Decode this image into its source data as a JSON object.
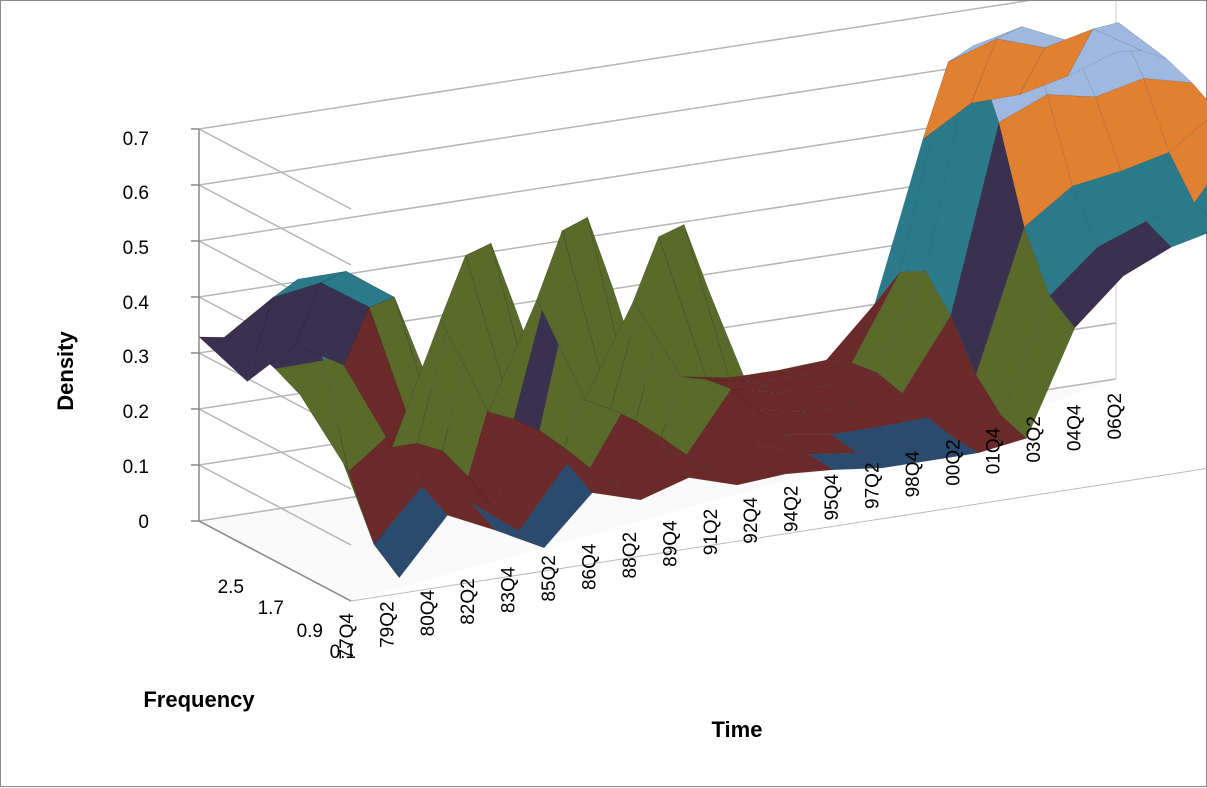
{
  "chart_data": {
    "type": "surface",
    "title": "",
    "zlabel": "Density",
    "xlabel": "Time",
    "ylabel": "Frequency",
    "zlim": [
      0,
      0.7
    ],
    "z_ticks": [
      "0",
      "0.1",
      "0.2",
      "0.3",
      "0.4",
      "0.5",
      "0.6",
      "0.7"
    ],
    "frequency_ticks": [
      "2.5",
      "1.7",
      "0.9",
      "0.1"
    ],
    "time_ticks": [
      "77Q4",
      "79Q2",
      "80Q4",
      "82Q2",
      "83Q4",
      "85Q2",
      "86Q4",
      "88Q2",
      "89Q4",
      "91Q2",
      "92Q4",
      "94Q2",
      "95Q4",
      "97Q2",
      "98Q4",
      "00Q2",
      "01Q4",
      "03Q2",
      "04Q4",
      "06Q2"
    ],
    "band_colors": [
      "#2a4a6e",
      "#6b2a2a",
      "#5a6a2a",
      "#3a3050",
      "#2a7a8a",
      "#e08030",
      "#9fb8e0",
      "#b89ad0",
      "#a8c860",
      "#e06060"
    ],
    "grid": true,
    "peak_density_by_time": [
      0.36,
      0.47,
      0.47,
      0.41,
      0.12,
      0.48,
      0.13,
      0.5,
      0.12,
      0.46,
      0.15,
      0.13,
      0.13,
      0.14,
      0.31,
      0.7,
      0.72,
      0.68,
      0.7,
      0.62
    ],
    "low_density_by_time": [
      0.3,
      0.02,
      0.12,
      0.08,
      0.04,
      0.12,
      0.1,
      0.12,
      0.1,
      0.1,
      0.1,
      0.09,
      0.09,
      0.09,
      0.1,
      0.28,
      0.36,
      0.4,
      0.42,
      0.55
    ]
  }
}
